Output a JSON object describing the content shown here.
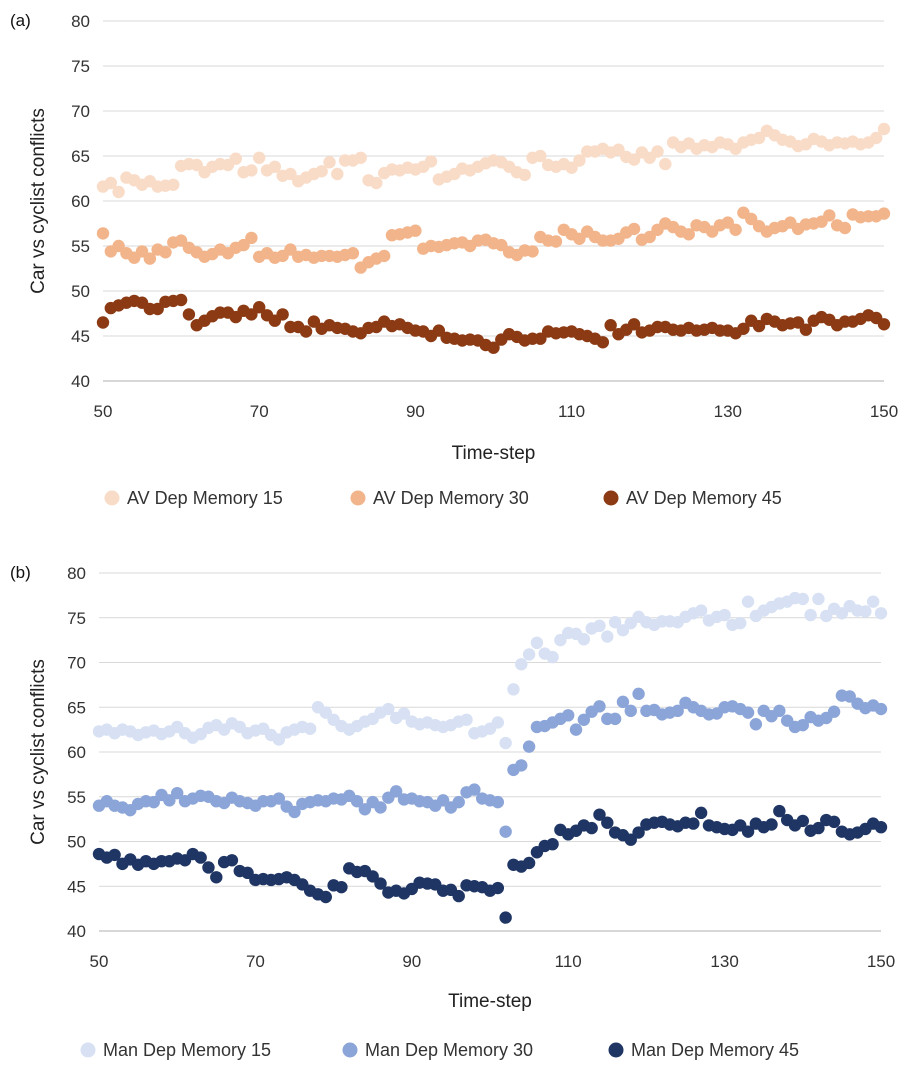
{
  "chart_data": [
    {
      "type": "scatter",
      "panel_label": "(a)",
      "xlabel": "Time-step",
      "ylabel": "Car vs cyclist conflicts",
      "xlim": [
        50,
        150
      ],
      "ylim": [
        40,
        80
      ],
      "x_ticks": [
        50,
        70,
        90,
        110,
        130,
        150
      ],
      "y_ticks": [
        40,
        45,
        50,
        55,
        60,
        65,
        70,
        75,
        80
      ],
      "grid": "horizontal",
      "legend_position": "bottom",
      "x": [
        50,
        51,
        52,
        53,
        54,
        55,
        56,
        57,
        58,
        59,
        60,
        61,
        62,
        63,
        64,
        65,
        66,
        67,
        68,
        69,
        70,
        71,
        72,
        73,
        74,
        75,
        76,
        77,
        78,
        79,
        80,
        81,
        82,
        83,
        84,
        85,
        86,
        87,
        88,
        89,
        90,
        91,
        92,
        93,
        94,
        95,
        96,
        97,
        98,
        99,
        100,
        101,
        102,
        103,
        104,
        105,
        106,
        107,
        108,
        109,
        110,
        111,
        112,
        113,
        114,
        115,
        116,
        117,
        118,
        119,
        120,
        121,
        122,
        123,
        124,
        125,
        126,
        127,
        128,
        129,
        130,
        131,
        132,
        133,
        134,
        135,
        136,
        137,
        138,
        139,
        140,
        141,
        142,
        143,
        144,
        145,
        146,
        147,
        148,
        149,
        150
      ],
      "series": [
        {
          "name": "AV Dep Memory 15",
          "color": "#f9dcc8",
          "values": [
            61.6,
            62.0,
            61.0,
            62.6,
            62.3,
            61.8,
            62.2,
            61.6,
            61.7,
            61.8,
            63.9,
            64.1,
            64.0,
            63.2,
            63.8,
            64.1,
            64.0,
            64.7,
            63.2,
            63.4,
            64.8,
            63.4,
            63.8,
            62.8,
            63.0,
            62.2,
            62.6,
            63.0,
            63.3,
            64.3,
            63.0,
            64.5,
            64.5,
            64.8,
            62.3,
            62.0,
            63.1,
            63.5,
            63.4,
            63.7,
            63.5,
            63.8,
            64.4,
            62.4,
            62.7,
            63.0,
            63.6,
            63.4,
            63.8,
            64.2,
            64.5,
            64.3,
            63.8,
            63.2,
            62.9,
            64.8,
            65.0,
            64.0,
            63.8,
            64.1,
            63.7,
            64.5,
            65.5,
            65.5,
            65.8,
            65.4,
            65.7,
            64.9,
            64.6,
            65.4,
            64.8,
            65.5,
            64.1,
            66.5,
            66.0,
            66.4,
            65.8,
            66.2,
            66.0,
            66.5,
            66.3,
            65.8,
            66.5,
            66.8,
            67.0,
            67.8,
            67.3,
            66.8,
            66.6,
            66.1,
            66.3,
            66.9,
            66.6,
            66.2,
            66.5,
            66.4,
            66.6,
            66.3,
            66.5,
            67.0,
            68.0
          ]
        },
        {
          "name": "AV Dep Memory 30",
          "color": "#f2b48a",
          "values": [
            56.4,
            54.4,
            55.0,
            54.2,
            53.7,
            54.4,
            53.6,
            54.6,
            54.3,
            55.4,
            55.6,
            54.8,
            54.3,
            53.8,
            54.1,
            54.6,
            54.2,
            54.8,
            55.1,
            55.9,
            53.8,
            54.2,
            53.7,
            53.9,
            54.6,
            53.8,
            54.0,
            53.7,
            53.9,
            53.9,
            53.8,
            54.0,
            54.2,
            52.6,
            53.2,
            53.6,
            53.9,
            56.2,
            56.3,
            56.5,
            56.7,
            54.7,
            55.0,
            54.9,
            55.1,
            55.3,
            55.4,
            55.0,
            55.6,
            55.7,
            55.3,
            55.1,
            54.3,
            54.0,
            54.5,
            54.4,
            56.0,
            55.6,
            55.5,
            56.8,
            56.3,
            55.8,
            56.6,
            56.0,
            55.6,
            55.6,
            55.8,
            56.5,
            56.9,
            55.7,
            56.0,
            56.8,
            57.5,
            57.1,
            56.6,
            56.3,
            57.3,
            57.1,
            56.6,
            57.3,
            57.6,
            56.8,
            58.7,
            58.0,
            57.2,
            56.6,
            57.0,
            57.2,
            57.6,
            56.9,
            57.4,
            57.5,
            57.7,
            58.4,
            57.3,
            57.0,
            58.5,
            58.2,
            58.3,
            58.3,
            58.6
          ]
        },
        {
          "name": "AV Dep Memory 45",
          "color": "#8b3a14",
          "values": [
            46.5,
            48.1,
            48.4,
            48.7,
            48.9,
            48.7,
            48.0,
            48.0,
            48.8,
            48.9,
            49.0,
            47.4,
            46.2,
            46.7,
            47.2,
            47.6,
            47.6,
            47.1,
            47.8,
            47.4,
            48.2,
            47.3,
            46.7,
            47.4,
            46.0,
            46.0,
            45.5,
            46.6,
            45.8,
            46.2,
            45.9,
            45.8,
            45.5,
            45.3,
            45.9,
            46.0,
            46.6,
            46.1,
            46.3,
            45.9,
            45.6,
            45.5,
            45.0,
            45.6,
            44.8,
            44.7,
            44.5,
            44.6,
            44.5,
            44.0,
            43.7,
            44.6,
            45.2,
            44.9,
            44.5,
            44.7,
            44.7,
            45.5,
            45.3,
            45.4,
            45.5,
            45.2,
            45.0,
            44.7,
            44.3,
            46.2,
            45.2,
            45.7,
            46.3,
            45.4,
            45.6,
            46.0,
            46.0,
            45.7,
            45.6,
            45.9,
            45.6,
            45.7,
            45.9,
            45.6,
            45.6,
            45.3,
            45.8,
            46.7,
            46.1,
            46.9,
            46.6,
            46.2,
            46.4,
            46.5,
            45.7,
            46.7,
            47.1,
            46.8,
            46.2,
            46.6,
            46.6,
            46.9,
            47.3,
            47.0,
            46.3
          ]
        }
      ]
    },
    {
      "type": "scatter",
      "panel_label": "(b)",
      "xlabel": "Time-step",
      "ylabel": "Car vs cyclist conflicts",
      "xlim": [
        50,
        150
      ],
      "ylim": [
        40,
        80
      ],
      "x_ticks": [
        50,
        70,
        90,
        110,
        130,
        150
      ],
      "y_ticks": [
        40,
        45,
        50,
        55,
        60,
        65,
        70,
        75,
        80
      ],
      "grid": "horizontal",
      "legend_position": "bottom",
      "x": [
        50,
        51,
        52,
        53,
        54,
        55,
        56,
        57,
        58,
        59,
        60,
        61,
        62,
        63,
        64,
        65,
        66,
        67,
        68,
        69,
        70,
        71,
        72,
        73,
        74,
        75,
        76,
        77,
        78,
        79,
        80,
        81,
        82,
        83,
        84,
        85,
        86,
        87,
        88,
        89,
        90,
        91,
        92,
        93,
        94,
        95,
        96,
        97,
        98,
        99,
        100,
        101,
        102,
        103,
        104,
        105,
        106,
        107,
        108,
        109,
        110,
        111,
        112,
        113,
        114,
        115,
        116,
        117,
        118,
        119,
        120,
        121,
        122,
        123,
        124,
        125,
        126,
        127,
        128,
        129,
        130,
        131,
        132,
        133,
        134,
        135,
        136,
        137,
        138,
        139,
        140,
        141,
        142,
        143,
        144,
        145,
        146,
        147,
        148,
        149,
        150
      ],
      "series": [
        {
          "name": "Man Dep Memory 15",
          "color": "#d7e1f3",
          "values": [
            62.3,
            62.5,
            62.1,
            62.5,
            62.3,
            61.9,
            62.2,
            62.4,
            62.0,
            62.3,
            62.8,
            62.1,
            61.6,
            62.0,
            62.7,
            63.0,
            62.5,
            63.2,
            62.8,
            62.1,
            62.4,
            62.6,
            61.9,
            61.4,
            62.2,
            62.5,
            62.8,
            62.6,
            65.0,
            64.4,
            63.6,
            62.9,
            62.5,
            62.9,
            63.4,
            63.7,
            64.4,
            64.8,
            63.8,
            64.3,
            63.4,
            63.1,
            63.3,
            63.0,
            62.8,
            63.0,
            63.4,
            63.6,
            62.1,
            62.3,
            62.6,
            63.3,
            61.0,
            67.0,
            69.8,
            70.9,
            72.2,
            71.0,
            70.6,
            72.5,
            73.3,
            73.2,
            72.6,
            73.8,
            74.1,
            72.9,
            74.5,
            73.6,
            74.4,
            75.1,
            74.5,
            74.2,
            74.6,
            74.6,
            74.5,
            75.1,
            75.5,
            75.8,
            74.7,
            75.1,
            75.3,
            74.2,
            74.4,
            76.8,
            75.2,
            75.8,
            76.2,
            76.6,
            76.8,
            77.2,
            77.1,
            75.3,
            77.1,
            75.2,
            76.0,
            75.5,
            76.3,
            75.8,
            75.7,
            76.8,
            75.5
          ]
        },
        {
          "name": "Man Dep Memory 30",
          "color": "#8ca5d8",
          "values": [
            54.0,
            54.5,
            54.0,
            53.8,
            53.5,
            54.2,
            54.5,
            54.4,
            55.2,
            54.6,
            55.4,
            54.5,
            54.8,
            55.1,
            55.0,
            54.5,
            54.3,
            54.9,
            54.5,
            54.3,
            54.0,
            54.5,
            54.5,
            54.8,
            53.9,
            53.3,
            54.2,
            54.4,
            54.6,
            54.5,
            54.8,
            54.7,
            55.1,
            54.5,
            53.6,
            54.4,
            53.8,
            54.9,
            55.6,
            54.7,
            54.8,
            54.5,
            54.4,
            54.0,
            54.6,
            53.8,
            54.4,
            55.5,
            55.8,
            54.8,
            54.6,
            54.4,
            51.1,
            58.0,
            58.5,
            60.6,
            62.8,
            62.9,
            63.3,
            63.7,
            64.1,
            62.5,
            63.6,
            64.5,
            65.1,
            63.7,
            63.7,
            65.6,
            64.6,
            66.5,
            64.6,
            64.7,
            64.2,
            64.4,
            64.6,
            65.5,
            65.0,
            64.6,
            64.2,
            64.3,
            65.0,
            65.1,
            64.8,
            64.4,
            63.1,
            64.6,
            64.0,
            64.6,
            63.5,
            62.8,
            63.0,
            63.9,
            63.5,
            63.8,
            64.5,
            66.3,
            66.2,
            65.4,
            64.9,
            65.2,
            64.8
          ]
        },
        {
          "name": "Man Dep Memory 45",
          "color": "#1f3564",
          "values": [
            48.6,
            48.2,
            48.5,
            47.5,
            48.0,
            47.4,
            47.8,
            47.5,
            47.8,
            47.8,
            48.1,
            47.9,
            48.6,
            48.2,
            47.1,
            46.0,
            47.7,
            47.9,
            46.7,
            46.5,
            45.7,
            45.8,
            45.7,
            45.8,
            46.0,
            45.7,
            45.2,
            44.5,
            44.1,
            43.8,
            45.1,
            44.9,
            47.0,
            46.6,
            46.7,
            46.1,
            45.3,
            44.3,
            44.5,
            44.2,
            44.7,
            45.4,
            45.3,
            45.2,
            44.5,
            44.6,
            43.9,
            45.1,
            45.0,
            44.9,
            44.5,
            44.8,
            41.5,
            47.4,
            47.2,
            47.6,
            48.8,
            49.5,
            49.7,
            51.3,
            50.8,
            51.2,
            51.8,
            51.5,
            53.0,
            52.1,
            51.0,
            50.7,
            50.2,
            51.0,
            51.9,
            52.1,
            52.2,
            51.9,
            51.7,
            52.1,
            52.0,
            53.2,
            51.8,
            51.6,
            51.4,
            51.3,
            51.8,
            51.1,
            52.0,
            51.6,
            51.9,
            53.4,
            52.4,
            51.8,
            52.3,
            51.2,
            51.5,
            52.4,
            52.2,
            51.1,
            50.8,
            51.0,
            51.4,
            52.0,
            51.6
          ]
        }
      ]
    }
  ]
}
